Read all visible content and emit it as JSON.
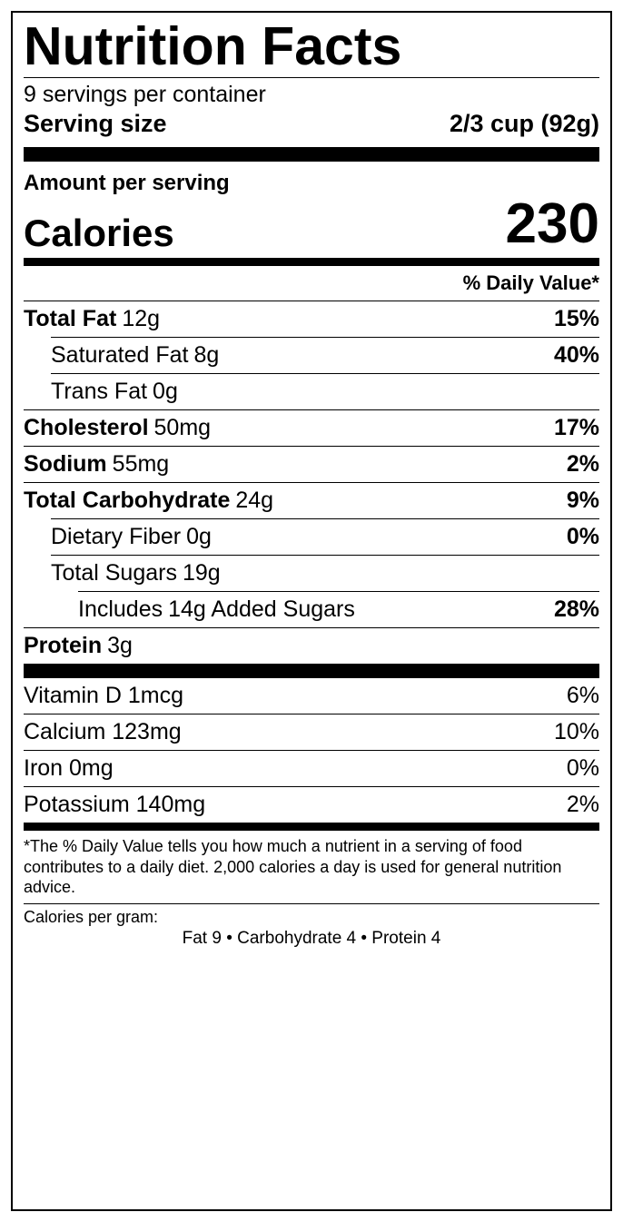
{
  "background_color": "#ffffff",
  "border_color": "#000000",
  "text_color": "#000000",
  "title": "Nutrition Facts",
  "title_fontsize": 59,
  "title_fontweight": 900,
  "servings_per_container": "9 servings per container",
  "serving_size_label": "Serving size",
  "serving_size_value": "2/3 cup (92g)",
  "amount_per_serving": "Amount per serving",
  "calories_label": "Calories",
  "calories_value": "230",
  "calories_fontsize": 62,
  "daily_value_header": "% Daily Value*",
  "nutrients": [
    {
      "name": "Total Fat",
      "amount": "12g",
      "dv": "15%",
      "bold": true,
      "indent": 0
    },
    {
      "name": "Saturated Fat",
      "amount": "8g",
      "dv": "40%",
      "bold": false,
      "indent": 1
    },
    {
      "name": "Trans Fat",
      "amount": "0g",
      "dv": "",
      "bold": false,
      "indent": 1
    },
    {
      "name": "Cholesterol",
      "amount": "50mg",
      "dv": "17%",
      "bold": true,
      "indent": 0
    },
    {
      "name": "Sodium",
      "amount": "55mg",
      "dv": "2%",
      "bold": true,
      "indent": 0
    },
    {
      "name": "Total Carbohydrate",
      "amount": "24g",
      "dv": "9%",
      "bold": true,
      "indent": 0
    },
    {
      "name": "Dietary Fiber",
      "amount": "0g",
      "dv": "0%",
      "bold": false,
      "indent": 1
    },
    {
      "name": "Total Sugars",
      "amount": "19g",
      "dv": "",
      "bold": false,
      "indent": 1
    },
    {
      "name": "Includes",
      "amount": "14g Added Sugars",
      "dv": "28%",
      "bold": false,
      "indent": 2
    },
    {
      "name": "Protein",
      "amount": "3g",
      "dv": "",
      "bold": true,
      "indent": 0
    }
  ],
  "vitamins": [
    {
      "name": "Vitamin D 1mcg",
      "dv": "6%"
    },
    {
      "name": "Calcium 123mg",
      "dv": "10%"
    },
    {
      "name": "Iron 0mg",
      "dv": "0%"
    },
    {
      "name": "Potassium 140mg",
      "dv": "2%"
    }
  ],
  "footnote": "*The % Daily Value tells you how much a nutrient in a serving of food contributes to a daily diet. 2,000 calories a day is used for general nutrition advice.",
  "calories_per_gram_label": "Calories per gram:",
  "calories_per_gram_values": "Fat 9   •   Carbohydrate 4   •   Protein 4",
  "rule_colors": "#000000",
  "thick_rule_height": 16,
  "med_rule_height": 9,
  "body_fontsize": 25,
  "footnote_fontsize": 18
}
